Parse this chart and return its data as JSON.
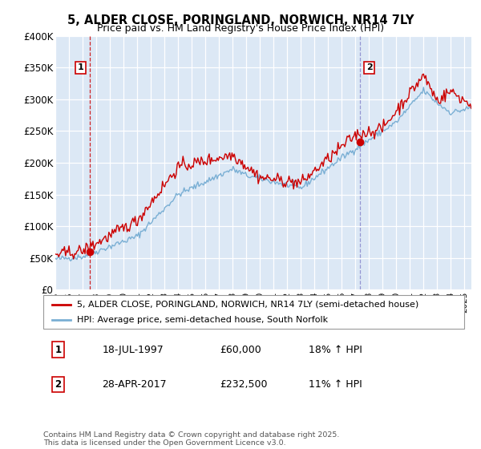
{
  "title1": "5, ALDER CLOSE, PORINGLAND, NORWICH, NR14 7LY",
  "title2": "Price paid vs. HM Land Registry's House Price Index (HPI)",
  "legend_line1": "5, ALDER CLOSE, PORINGLAND, NORWICH, NR14 7LY (semi-detached house)",
  "legend_line2": "HPI: Average price, semi-detached house, South Norfolk",
  "annotation1_label": "1",
  "annotation1_date": "18-JUL-1997",
  "annotation1_price": "£60,000",
  "annotation1_hpi": "18% ↑ HPI",
  "annotation2_label": "2",
  "annotation2_date": "28-APR-2017",
  "annotation2_price": "£232,500",
  "annotation2_hpi": "11% ↑ HPI",
  "footnote": "Contains HM Land Registry data © Crown copyright and database right 2025.\nThis data is licensed under the Open Government Licence v3.0.",
  "sale1_year": 1997.54,
  "sale1_price": 60000,
  "sale2_year": 2017.32,
  "sale2_price": 232500,
  "hpi_color": "#7aafd4",
  "price_color": "#cc0000",
  "dashed1_color": "#cc0000",
  "dashed2_color": "#8888cc",
  "background_color": "#dce8f5",
  "plot_bg": "#dce8f5",
  "ylim": [
    0,
    400000
  ],
  "xlim_start": 1995,
  "xlim_end": 2025.5,
  "ytick_labels": [
    "£0",
    "£50K",
    "£100K",
    "£150K",
    "£200K",
    "£250K",
    "£300K",
    "£350K",
    "£400K"
  ],
  "ytick_values": [
    0,
    50000,
    100000,
    150000,
    200000,
    250000,
    300000,
    350000,
    400000
  ]
}
